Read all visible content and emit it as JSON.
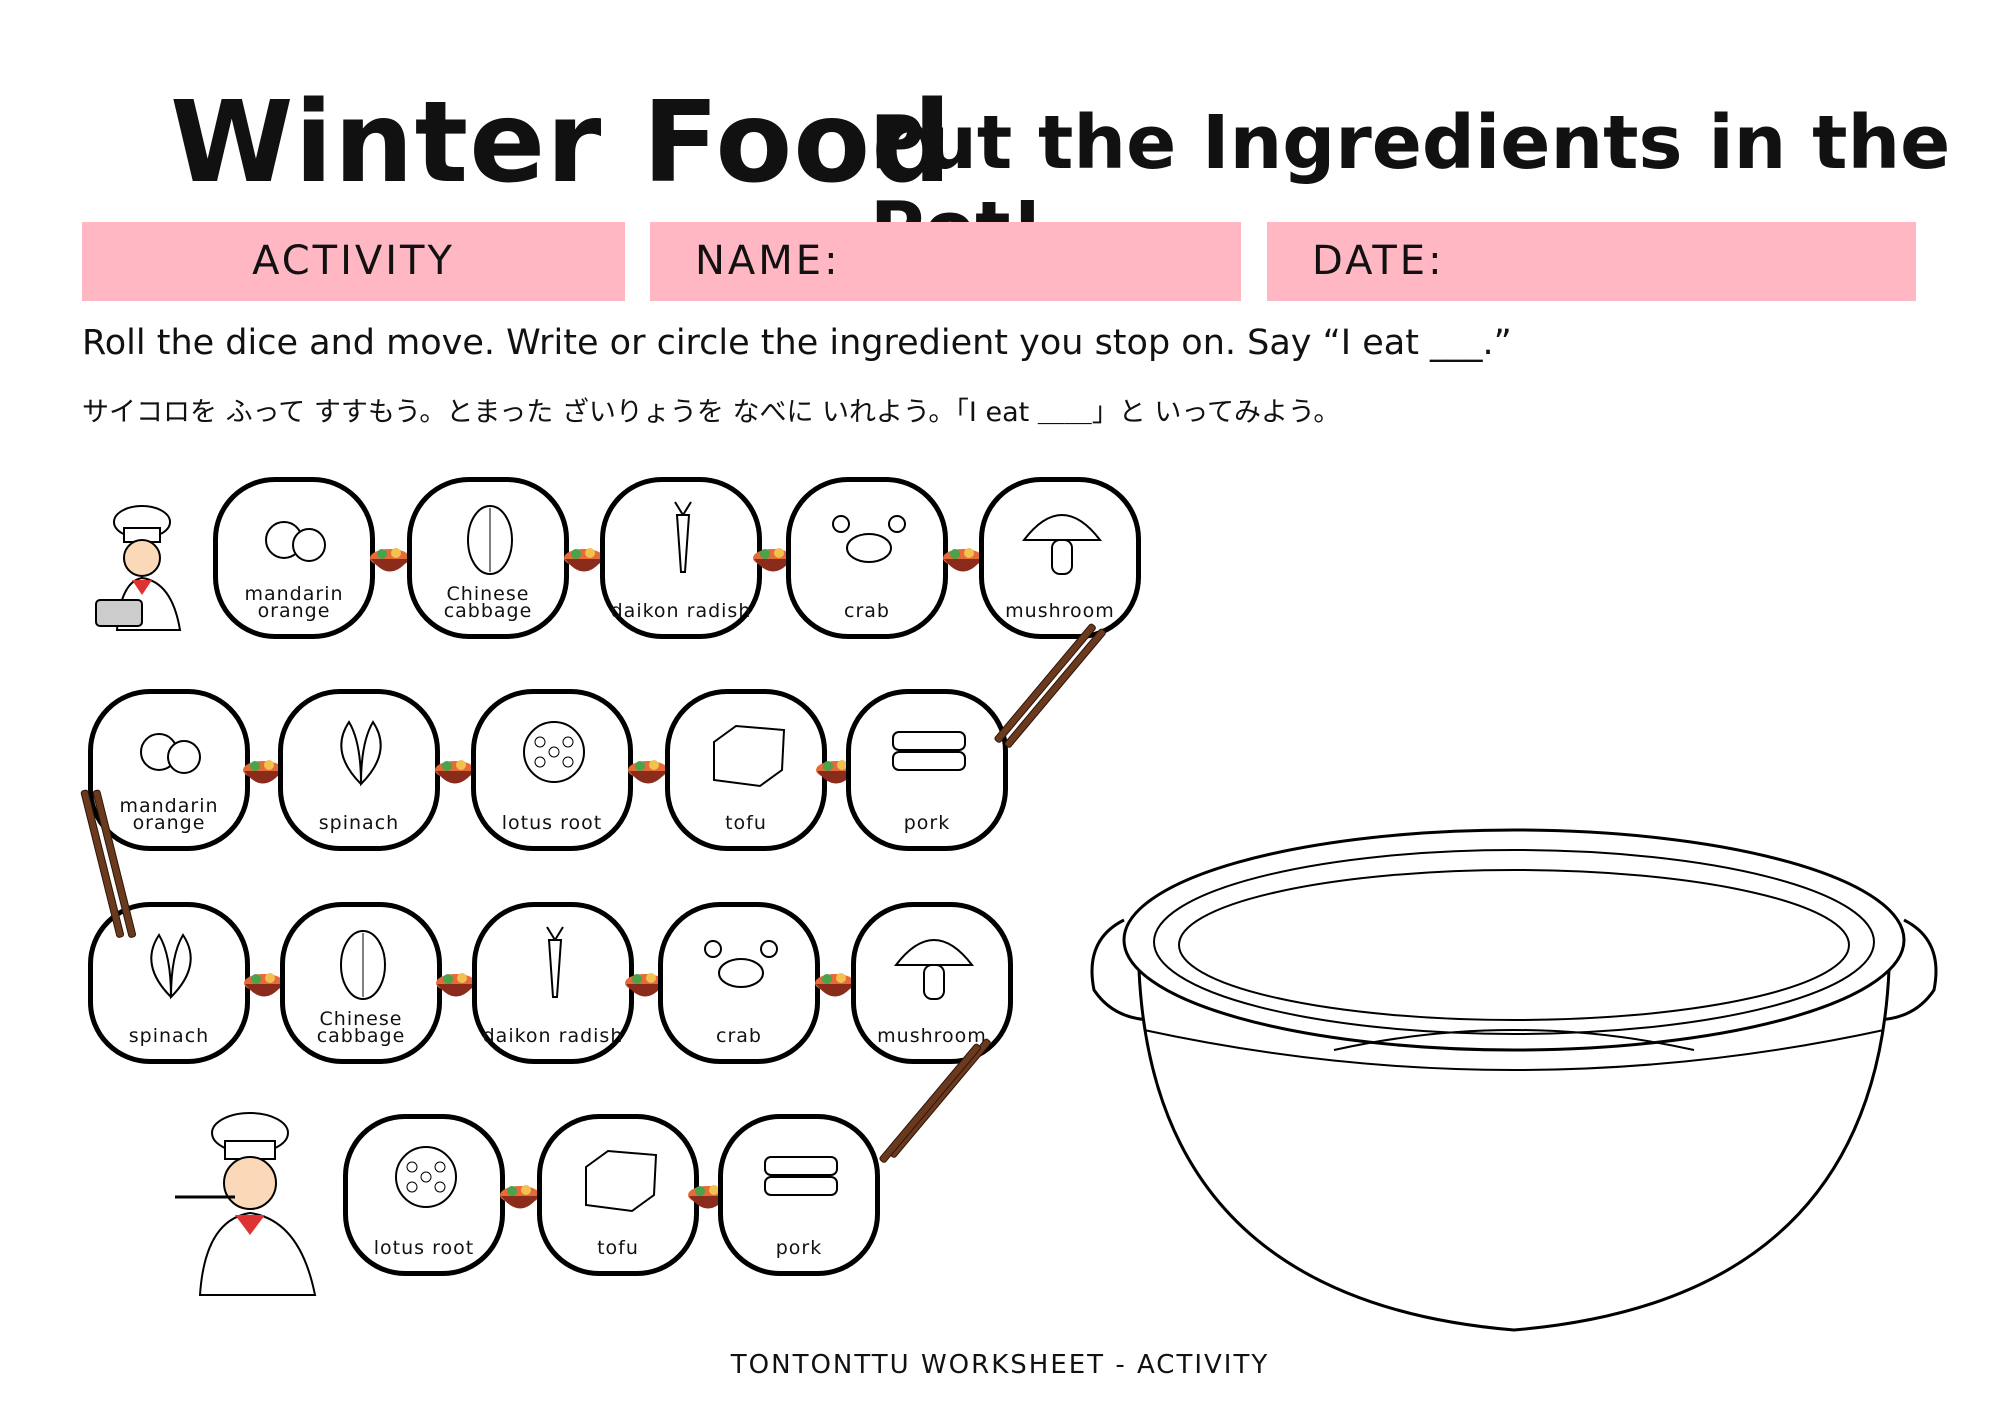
{
  "header": {
    "title": "Winter Food",
    "subtitle": "Put the Ingredients in the Pot!"
  },
  "fields": {
    "activity": "ACTIVITY",
    "name": "NAME:",
    "date": "DATE:"
  },
  "instructions": {
    "english": "Roll the dice and move. Write or circle the ingredient you stop on. Say “I eat ___.”",
    "japanese": "サイコロを ふって すすもう。とまった ざいりょうを なべに いれよう。「I eat ＿＿」と いってみよう。"
  },
  "board": {
    "rows": [
      [
        "mandarin orange",
        "Chinese cabbage",
        "daikon radish",
        "crab",
        "mushroom"
      ],
      [
        "mandarin orange",
        "spinach",
        "lotus root",
        "tofu",
        "pork"
      ],
      [
        "spinach",
        "Chinese cabbage",
        "daikon radish",
        "crab",
        "mushroom"
      ],
      [
        "lotus root",
        "tofu",
        "pork"
      ]
    ]
  },
  "colors": {
    "field_bar": "#ffb7c3",
    "text": "#111111"
  },
  "footer": "TONTONTTU WORKSHEET - ACTIVITY"
}
